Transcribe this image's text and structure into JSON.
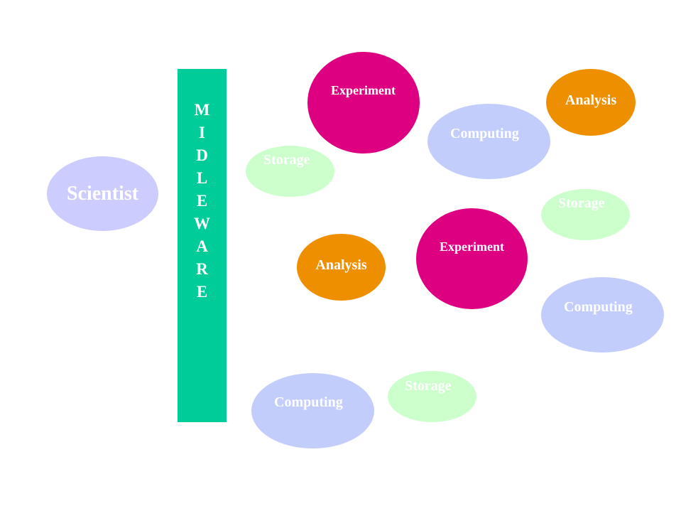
{
  "scientist": "Scientist",
  "middleware_letters": [
    "M",
    "I",
    "D",
    "L",
    "E",
    "W",
    "A",
    "R",
    "E"
  ],
  "nodes": {
    "experiment_1": "Experiment",
    "experiment_2": "Experiment",
    "analysis_1": "Analysis",
    "analysis_2": "Analysis",
    "computing_1": "Computing",
    "computing_2": "Computing",
    "computing_3": "Computing",
    "storage_1": "Storage",
    "storage_2": "Storage",
    "storage_3": "Storage"
  },
  "colors": {
    "scientist": "#ccccff",
    "middleware": "#00cc99",
    "experiment": "#dd0080",
    "analysis": "#ee8f00",
    "computing": "#c3cdfc",
    "storage": "#ccffcc"
  }
}
